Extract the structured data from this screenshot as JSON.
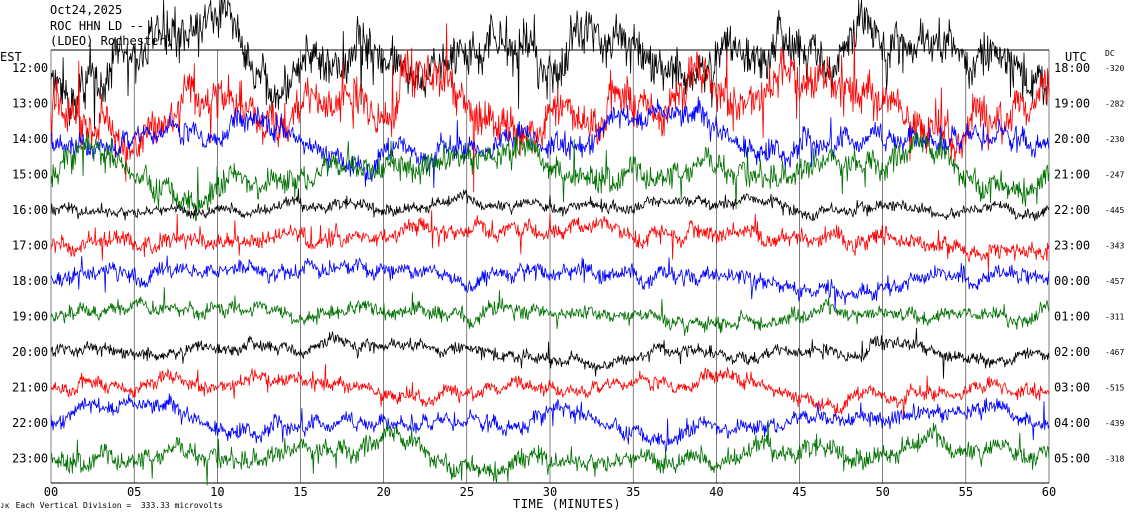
{
  "header": {
    "date": "Oct24,2025",
    "station": "ROC HHN LD --",
    "network": "(LDEO) Rochester)"
  },
  "left_tz_label": "EST",
  "right_tz_label": "UTC",
  "dc_label": "DC",
  "footer": {
    "icon_text": "ᴊᴋ",
    "scale_note": "Each Vertical Division =  333.33 microvolts"
  },
  "chart_data": {
    "type": "line",
    "xlabel": "TIME (MINUTES)",
    "xlim": [
      0,
      60
    ],
    "x_ticks": [
      "00",
      "05",
      "10",
      "15",
      "20",
      "25",
      "30",
      "35",
      "40",
      "45",
      "50",
      "55",
      "60"
    ],
    "trace_colors": [
      "#000000",
      "#ff0000",
      "#0000ff",
      "#007000"
    ],
    "rows": [
      {
        "left": "12:00",
        "right": "18:00",
        "dc": "-320",
        "color": "#000000",
        "amp": 3.2
      },
      {
        "left": "13:00",
        "right": "19:00",
        "dc": "-282",
        "color": "#ff0000",
        "amp": 3.0
      },
      {
        "left": "14:00",
        "right": "20:00",
        "dc": "-230",
        "color": "#0000ff",
        "amp": 1.6
      },
      {
        "left": "15:00",
        "right": "21:00",
        "dc": "-247",
        "color": "#007000",
        "amp": 1.8
      },
      {
        "left": "16:00",
        "right": "22:00",
        "dc": "-445",
        "color": "#000000",
        "amp": 0.8
      },
      {
        "left": "17:00",
        "right": "23:00",
        "dc": "-343",
        "color": "#ff0000",
        "amp": 1.2
      },
      {
        "left": "18:00",
        "right": "00:00",
        "dc": "-457",
        "color": "#0000ff",
        "amp": 1.1
      },
      {
        "left": "19:00",
        "right": "01:00",
        "dc": "-311",
        "color": "#007000",
        "amp": 1.0
      },
      {
        "left": "20:00",
        "right": "02:00",
        "dc": "-467",
        "color": "#000000",
        "amp": 0.9
      },
      {
        "left": "21:00",
        "right": "03:00",
        "dc": "-515",
        "color": "#ff0000",
        "amp": 1.0
      },
      {
        "left": "22:00",
        "right": "04:00",
        "dc": "-439",
        "color": "#0000ff",
        "amp": 1.1
      },
      {
        "left": "23:00",
        "right": "05:00",
        "dc": "-318",
        "color": "#007000",
        "amp": 1.4
      }
    ]
  }
}
